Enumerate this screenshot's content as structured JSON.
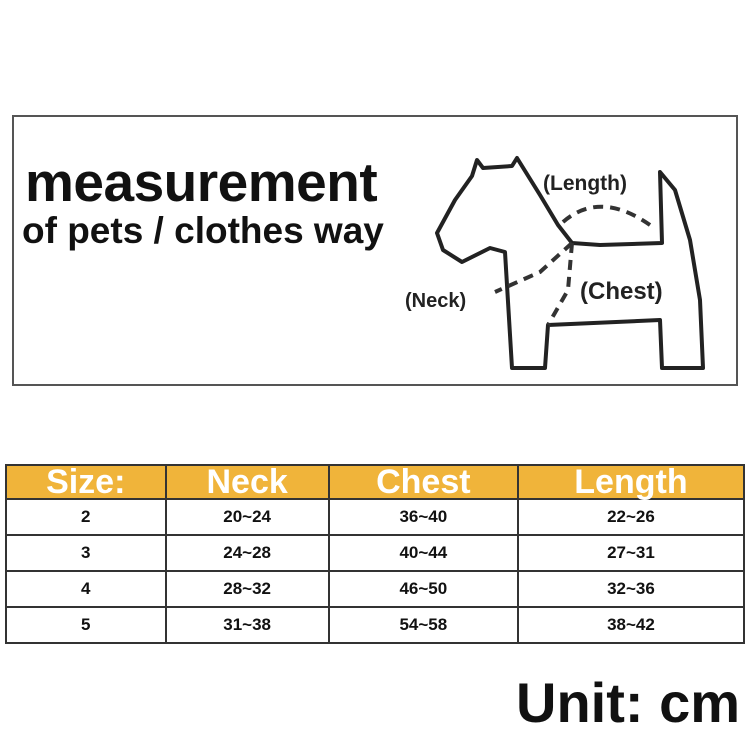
{
  "header": {
    "title": "measurement",
    "subtitle": "of pets / clothes way"
  },
  "diagram": {
    "labels": {
      "length": "(Length)",
      "neck": "(Neck)",
      "chest": "(Chest)"
    }
  },
  "table": {
    "header_color": "#f0b43a",
    "columns": [
      "Size:",
      "Neck",
      "Chest",
      "Length"
    ],
    "rows": [
      [
        "2",
        "20~24",
        "36~40",
        "22~26"
      ],
      [
        "3",
        "24~28",
        "40~44",
        "27~31"
      ],
      [
        "4",
        "28~32",
        "46~50",
        "32~36"
      ],
      [
        "5",
        "31~38",
        "54~58",
        "38~42"
      ]
    ]
  },
  "unit": "Unit: cm"
}
